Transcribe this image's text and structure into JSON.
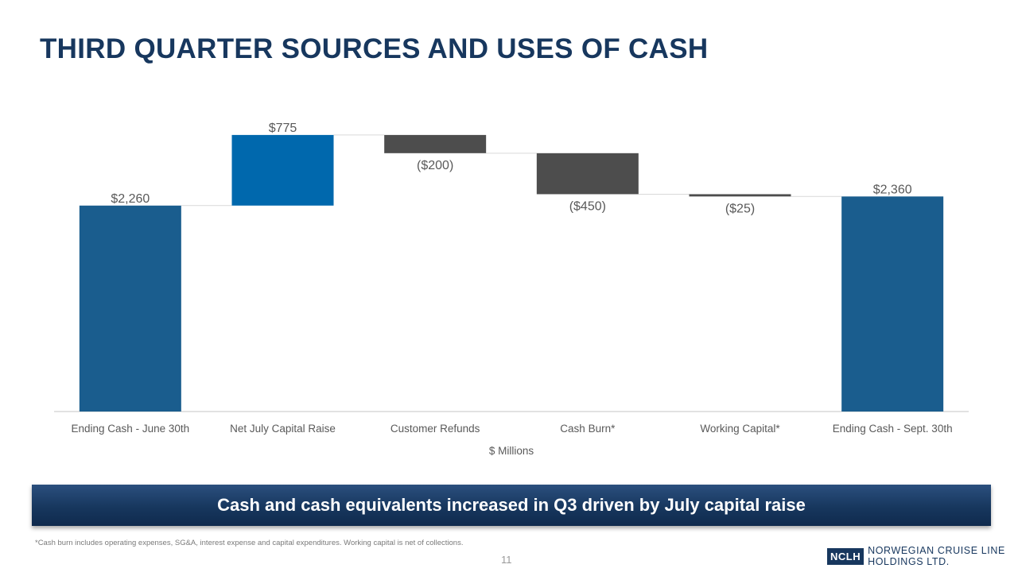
{
  "slide": {
    "title": "THIRD QUARTER SOURCES AND USES OF CASH",
    "banner": "Cash and cash equivalents increased in Q3 driven by July capital raise",
    "footnote": "*Cash burn includes operating expenses, SG&A, interest expense and capital expenditures. Working capital is net of collections.",
    "page_number": "11",
    "logo": {
      "mark": "NCLH",
      "line1": "NORWEGIAN CRUISE LINE",
      "line2": "HOLDINGS LTD."
    }
  },
  "chart_data": {
    "type": "waterfall",
    "title": "",
    "xlabel": "$ Millions",
    "ylabel": "",
    "ylim": [
      0,
      3000
    ],
    "grid": false,
    "categories": [
      "Ending Cash - June 30th",
      "Net July Capital Raise",
      "Customer Refunds",
      "Cash Burn*",
      "Working Capital*",
      "Ending Cash - Sept. 30th"
    ],
    "values": [
      2260,
      775,
      -200,
      -450,
      -25,
      2360
    ],
    "kinds": [
      "total",
      "increase",
      "decrease",
      "decrease",
      "decrease",
      "total"
    ],
    "labels": [
      "$2,260",
      "$775",
      "($200)",
      "($450)",
      "($25)",
      "$2,360"
    ],
    "colors": {
      "total": "#1a5d8e",
      "increase": "#0068ad",
      "decrease": "#4d4d4d",
      "connector": "#d9d9d9",
      "axis": "#d9d9d9",
      "text": "#595959"
    }
  }
}
